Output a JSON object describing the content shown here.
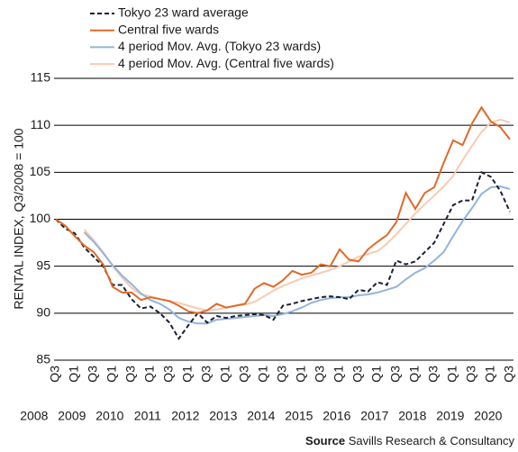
{
  "chart_data": {
    "type": "line",
    "y_label": "RENTAL INDEX, Q3/2008 = 100",
    "source_label": "Source",
    "source_text": "Savills Research & Consultancy",
    "categories": [
      "Q3",
      null,
      "Q1",
      null,
      "Q3",
      null,
      "Q1",
      null,
      "Q3",
      null,
      "Q1",
      null,
      "Q3",
      null,
      "Q1",
      null,
      "Q3",
      null,
      "Q1",
      null,
      "Q3",
      null,
      "Q1",
      null,
      "Q3",
      null,
      "Q1",
      null,
      "Q3",
      null,
      "Q1",
      null,
      "Q3",
      null,
      "Q1",
      null,
      "Q3",
      null,
      "Q1",
      null,
      "Q3",
      null,
      "Q1",
      null,
      "Q3",
      null,
      "Q1",
      null,
      "Q3"
    ],
    "years": [
      "2008",
      "2009",
      "2010",
      "2011",
      "2012",
      "2013",
      "2014",
      "2015",
      "2016",
      "2017",
      "2018",
      "2019",
      "2020"
    ],
    "ylim": [
      85,
      115
    ],
    "yticks": [
      85,
      90,
      95,
      100,
      105,
      110,
      115
    ],
    "grid": true,
    "series": [
      {
        "name": "Tokyo 23 ward average",
        "color": "#1a2030",
        "dashed": true,
        "values": [
          100,
          99,
          98.5,
          97,
          96,
          95,
          93,
          93,
          91.5,
          90.5,
          90.7,
          90,
          89,
          87.3,
          88.7,
          90,
          89,
          89.7,
          89.5,
          89.7,
          89.8,
          89.9,
          89.8,
          89.3,
          90.8,
          91,
          91.3,
          91.5,
          91.7,
          91.8,
          91.7,
          91.5,
          92.5,
          92.3,
          93.3,
          93,
          95.6,
          95.2,
          95.5,
          96.5,
          97.5,
          99.5,
          101.5,
          102,
          102,
          105,
          104.5,
          103,
          100.8
        ]
      },
      {
        "name": "Central five wards",
        "color": "#e0692a",
        "dashed": false,
        "values": [
          100,
          99.3,
          98.2,
          97.2,
          96.5,
          95.2,
          92.8,
          92.2,
          92.2,
          91.4,
          91.7,
          91.5,
          91.3,
          90.8,
          90.2,
          90,
          90.3,
          91,
          90.6,
          90.8,
          91,
          92.6,
          93.2,
          92.8,
          93.5,
          94.5,
          94.1,
          94.3,
          95.2,
          95,
          96.8,
          95.7,
          95.5,
          96.8,
          97.6,
          98.3,
          99.7,
          102.8,
          101.1,
          102.8,
          103.4,
          106,
          108.4,
          107.9,
          110.2,
          111.9,
          110.4,
          109.8,
          108.5
        ]
      },
      {
        "name": "4 period Mov. Avg. (Tokyo 23 wards)",
        "color": "#92b3de",
        "dashed": false,
        "values": [
          null,
          null,
          null,
          98.6,
          97.6,
          96.4,
          95.1,
          94,
          93.1,
          92.1,
          91.4,
          91,
          90.4,
          89.5,
          89.1,
          88.9,
          88.9,
          89.3,
          89.4,
          89.5,
          89.6,
          89.7,
          89.8,
          89.7,
          89.9,
          90.2,
          90.6,
          91.1,
          91.4,
          91.6,
          91.7,
          91.7,
          91.9,
          92,
          92.2,
          92.5,
          92.8,
          93.6,
          94.3,
          94.8,
          95.6,
          96.5,
          98.2,
          99.8,
          101.2,
          102.7,
          103.4,
          103.5,
          103.2
        ]
      },
      {
        "name": "4 period Mov. Avg. (Central five wards)",
        "color": "#f9cab2",
        "dashed": false,
        "values": [
          null,
          null,
          null,
          98.9,
          97.8,
          96.5,
          95,
          93.8,
          92.7,
          92,
          91.8,
          91.5,
          91.3,
          91.1,
          90.8,
          90.5,
          90.3,
          90.4,
          90.6,
          90.8,
          90.9,
          91.2,
          91.8,
          92.4,
          92.9,
          93.3,
          93.7,
          94,
          94.3,
          94.6,
          95,
          95.5,
          96,
          96.3,
          96.6,
          97.4,
          98.4,
          99.5,
          100.6,
          101.6,
          102.5,
          103.5,
          104.6,
          106.3,
          107.8,
          109.3,
          110.3,
          110.6,
          110.3
        ]
      }
    ]
  }
}
